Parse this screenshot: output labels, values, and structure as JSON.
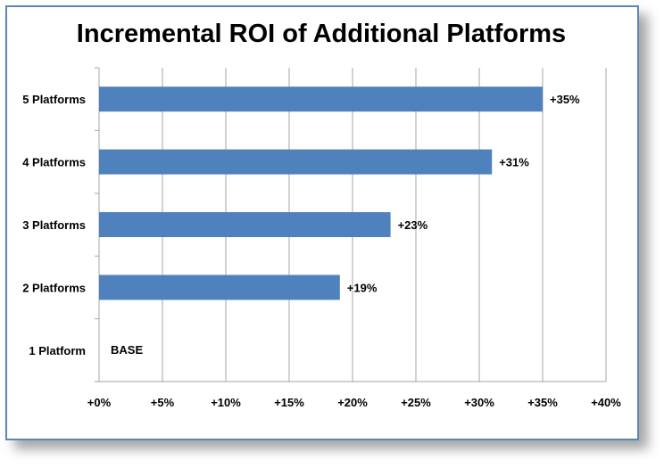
{
  "chart_data": {
    "type": "bar",
    "orientation": "horizontal",
    "title": "Incremental ROI of Additional Platforms",
    "categories": [
      "5 Platforms",
      "4 Platforms",
      "3 Platforms",
      "2 Platforms",
      "1 Platform"
    ],
    "values": [
      35,
      31,
      23,
      19,
      0
    ],
    "data_labels": [
      "+35%",
      "+31%",
      "+23%",
      "+19%",
      "BASE"
    ],
    "x_ticks": [
      "+0%",
      "+5%",
      "+10%",
      "+15%",
      "+20%",
      "+25%",
      "+30%",
      "+35%",
      "+40%"
    ],
    "xlim": [
      0,
      40
    ],
    "grid": "vertical",
    "legend": "none",
    "bar_color": "#4f81bd",
    "grid_color": "#a6a6a6"
  }
}
